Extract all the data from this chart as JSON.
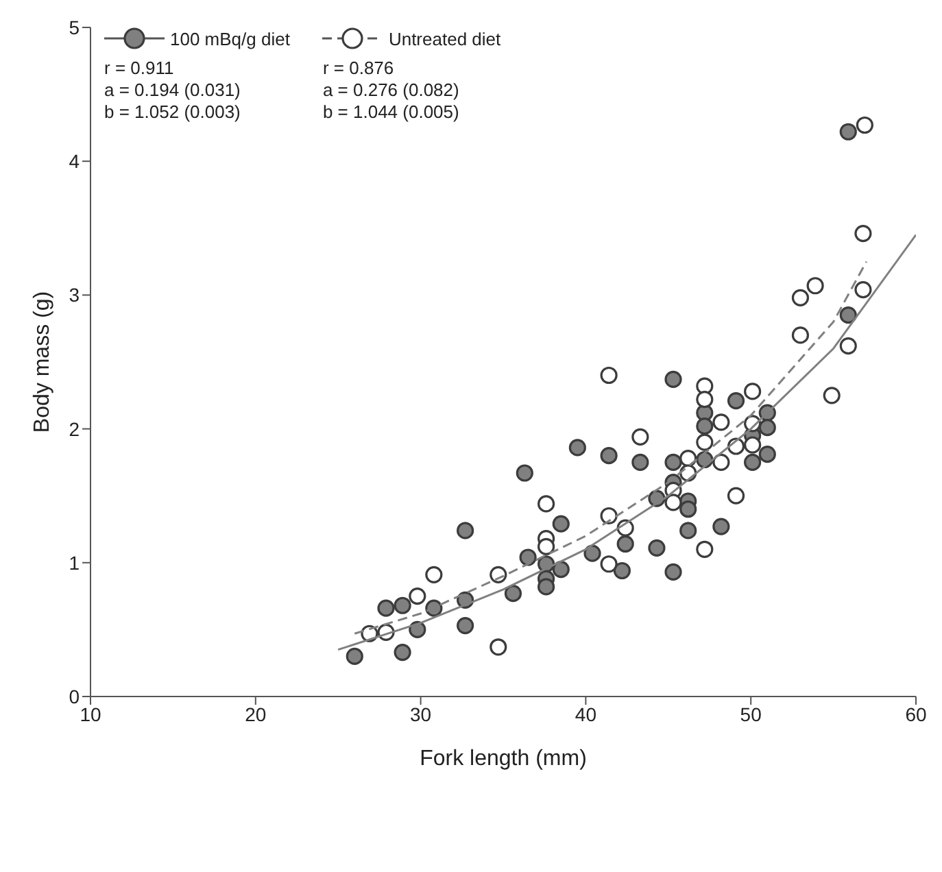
{
  "chart_data": {
    "type": "scatter",
    "xlabel": "Fork length (mm)",
    "ylabel": "Body mass (g)",
    "xlim": [
      10,
      60
    ],
    "xticks": [
      10,
      20,
      30,
      40,
      50,
      60
    ],
    "ylim": [
      0,
      5
    ],
    "yticks": [
      0,
      1,
      2,
      3,
      4,
      5
    ],
    "legend": "top left",
    "marker": "circle",
    "series": [
      {
        "name": "100 mBq/g diet",
        "color": "#808080",
        "line_style": "solid",
        "x": [
          26.0,
          27.9,
          28.9,
          28.9,
          29.8,
          30.8,
          32.7,
          32.7,
          32.7,
          35.6,
          36.5,
          37.6,
          37.6,
          37.6,
          38.5,
          38.5,
          40.4,
          42.2,
          36.3,
          39.5,
          41.4,
          43.3,
          45.3,
          45.3,
          47.2,
          47.2,
          47.2,
          49.1,
          51.0,
          51.0,
          51.0,
          50.1,
          50.1,
          48.2,
          45.3,
          44.3,
          46.2,
          46.2,
          46.2,
          42.4,
          44.3,
          45.3,
          55.9,
          55.9
        ],
        "values": [
          0.3,
          0.66,
          0.68,
          0.33,
          0.5,
          0.66,
          1.24,
          0.72,
          0.53,
          0.77,
          1.04,
          0.99,
          0.88,
          0.82,
          1.29,
          0.95,
          1.07,
          0.94,
          1.67,
          1.86,
          1.8,
          1.75,
          2.37,
          1.75,
          2.12,
          2.02,
          1.77,
          2.21,
          2.12,
          2.01,
          1.81,
          1.95,
          1.75,
          1.27,
          1.6,
          1.48,
          1.46,
          1.4,
          1.24,
          1.14,
          1.11,
          0.93,
          4.22,
          2.85
        ]
      },
      {
        "name": "Untreated diet",
        "color": "#ffffff",
        "line_style": "dashed",
        "x": [
          26.9,
          27.9,
          29.8,
          30.8,
          34.7,
          34.7,
          37.6,
          37.6,
          37.6,
          41.4,
          41.4,
          41.4,
          47.2,
          47.2,
          47.2,
          50.1,
          48.2,
          50.1,
          50.1,
          49.1,
          48.2,
          49.1,
          47.2,
          54.9,
          43.3,
          46.2,
          46.2,
          45.3,
          45.3,
          42.4,
          56.9,
          56.8,
          53.9,
          53.0,
          56.8,
          53.0,
          55.9
        ],
        "values": [
          0.47,
          0.48,
          0.75,
          0.91,
          0.91,
          0.37,
          1.44,
          1.18,
          1.12,
          1.35,
          0.99,
          2.4,
          2.32,
          2.22,
          1.9,
          2.28,
          2.05,
          2.04,
          1.88,
          1.87,
          1.75,
          1.5,
          1.1,
          2.25,
          1.94,
          1.78,
          1.67,
          1.54,
          1.45,
          1.26,
          4.27,
          3.46,
          3.07,
          2.98,
          3.04,
          2.7,
          2.62
        ]
      },
      {
        "type": "line",
        "color": "#808080",
        "line_style": "solid",
        "marker": "none",
        "x": [
          25,
          30,
          35,
          40,
          45,
          50,
          55,
          60
        ],
        "values": [
          0.35,
          0.55,
          0.8,
          1.1,
          1.5,
          2.0,
          2.6,
          3.45
        ]
      },
      {
        "type": "line",
        "color": "#808080",
        "line_style": "dashed",
        "marker": "none",
        "x": [
          26,
          30,
          35,
          40,
          45,
          50,
          55,
          57
        ],
        "values": [
          0.47,
          0.62,
          0.9,
          1.2,
          1.6,
          2.1,
          2.8,
          3.25
        ]
      }
    ],
    "annotations": [
      "r = 0.911",
      "a = 0.194 (0.031)",
      "b = 1.052 (0.003)",
      "r = 0.876",
      "a = 0.276 (0.082)",
      "b = 1.044 (0.005)"
    ]
  }
}
